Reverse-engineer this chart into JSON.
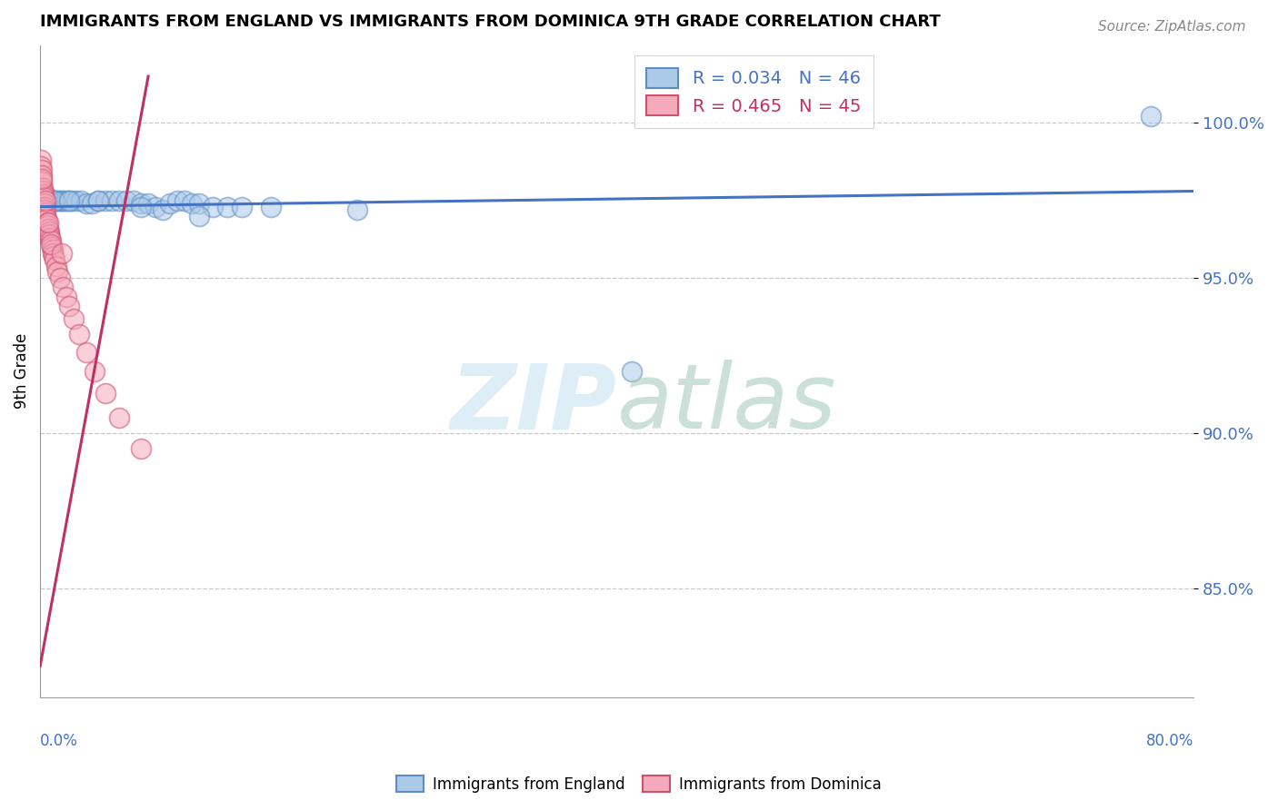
{
  "title": "IMMIGRANTS FROM ENGLAND VS IMMIGRANTS FROM DOMINICA 9TH GRADE CORRELATION CHART",
  "source": "Source: ZipAtlas.com",
  "ylabel": "9th Grade",
  "xlim": [
    0.0,
    80.0
  ],
  "ylim": [
    81.5,
    102.5
  ],
  "ytick_vals": [
    85.0,
    90.0,
    95.0,
    100.0
  ],
  "ytick_labels": [
    "85.0%",
    "90.0%",
    "95.0%",
    "100.0%"
  ],
  "england_R": 0.034,
  "england_N": 46,
  "dominica_R": 0.465,
  "dominica_N": 45,
  "england_color": "#adc9e8",
  "dominica_color": "#f5aabb",
  "england_edge_color": "#5b8ec4",
  "dominica_edge_color": "#d05070",
  "england_line_color": "#4472c4",
  "dominica_line_color": "#c03060",
  "legend_england": "Immigrants from England",
  "legend_dominica": "Immigrants from Dominica",
  "england_x": [
    0.15,
    0.3,
    0.45,
    0.6,
    0.75,
    0.9,
    1.05,
    1.2,
    1.35,
    1.5,
    1.65,
    1.8,
    2.0,
    2.2,
    2.5,
    2.8,
    3.2,
    3.6,
    4.0,
    4.5,
    5.0,
    5.5,
    6.0,
    6.5,
    7.0,
    7.5,
    8.0,
    8.5,
    9.0,
    9.5,
    10.0,
    10.5,
    11.0,
    12.0,
    13.0,
    14.0,
    16.0,
    22.0,
    41.0,
    77.0,
    0.5,
    1.0,
    2.0,
    4.0,
    7.0,
    11.0
  ],
  "england_y": [
    97.5,
    97.6,
    97.5,
    97.5,
    97.5,
    97.5,
    97.5,
    97.5,
    97.5,
    97.5,
    97.5,
    97.5,
    97.5,
    97.5,
    97.5,
    97.5,
    97.4,
    97.4,
    97.5,
    97.5,
    97.5,
    97.5,
    97.5,
    97.5,
    97.4,
    97.4,
    97.3,
    97.2,
    97.4,
    97.5,
    97.5,
    97.4,
    97.4,
    97.3,
    97.3,
    97.3,
    97.3,
    97.2,
    92.0,
    100.2,
    97.6,
    97.5,
    97.5,
    97.5,
    97.3,
    97.0
  ],
  "dominica_x": [
    0.05,
    0.08,
    0.1,
    0.12,
    0.15,
    0.18,
    0.2,
    0.22,
    0.25,
    0.28,
    0.3,
    0.33,
    0.36,
    0.4,
    0.44,
    0.48,
    0.52,
    0.56,
    0.6,
    0.65,
    0.7,
    0.75,
    0.8,
    0.85,
    0.9,
    0.95,
    1.0,
    1.1,
    1.2,
    1.4,
    1.6,
    1.8,
    2.0,
    2.3,
    2.7,
    3.2,
    3.8,
    4.5,
    5.5,
    7.0,
    0.15,
    0.35,
    0.55,
    0.75,
    1.5
  ],
  "dominica_y": [
    98.8,
    98.6,
    98.5,
    98.3,
    98.1,
    97.9,
    97.8,
    97.7,
    97.6,
    97.4,
    97.3,
    97.2,
    97.1,
    97.0,
    96.9,
    96.8,
    96.7,
    96.6,
    96.5,
    96.4,
    96.3,
    96.2,
    96.0,
    95.9,
    95.8,
    95.7,
    95.6,
    95.4,
    95.2,
    95.0,
    94.7,
    94.4,
    94.1,
    93.7,
    93.2,
    92.6,
    92.0,
    91.3,
    90.5,
    89.5,
    98.2,
    97.5,
    96.8,
    96.1,
    95.8
  ],
  "eng_line_x0": 0.0,
  "eng_line_x1": 80.0,
  "eng_line_y0": 97.3,
  "eng_line_y1": 97.8,
  "dom_line_x0": 0.0,
  "dom_line_x1": 7.5,
  "dom_line_y0": 82.5,
  "dom_line_y1": 101.5
}
